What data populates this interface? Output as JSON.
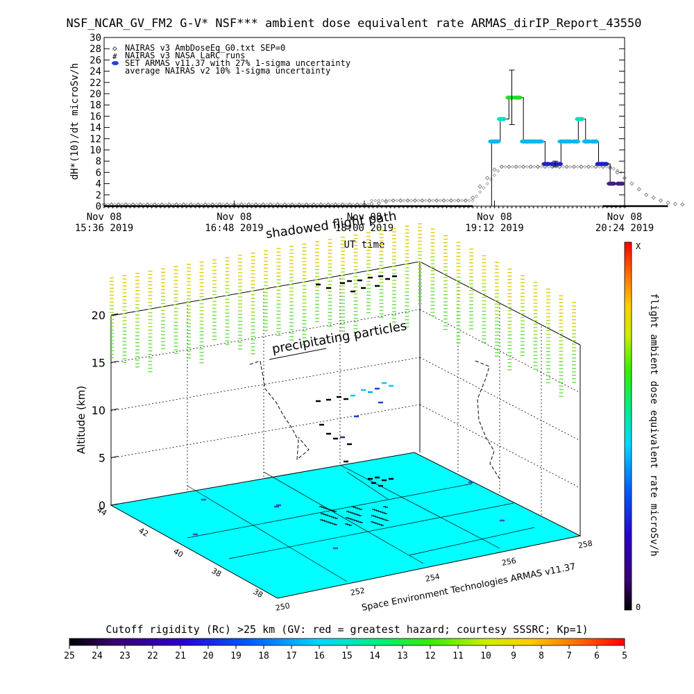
{
  "title": "NSF_NCAR_GV_FM2 G-V* NSF*** ambient dose equivalent rate ARMAS_dirIP_Report_43550",
  "chart_data": [
    {
      "type": "scatter",
      "ylabel": "dH*(10)/dt microSv/h",
      "xlabel": "UT time",
      "ylim": [
        0,
        30
      ],
      "yticks": [
        "0",
        "2",
        "4",
        "6",
        "8",
        "10",
        "12",
        "14",
        "16",
        "18",
        "20",
        "22",
        "24",
        "26",
        "28",
        "30"
      ],
      "xticks": [
        {
          "line1": "Nov 08",
          "line2": "15:36 2019"
        },
        {
          "line1": "Nov 08",
          "line2": "16:48 2019"
        },
        {
          "line1": "Nov 08",
          "line2": "18:00 2019"
        },
        {
          "line1": "Nov 08",
          "line2": "19:12 2019"
        },
        {
          "line1": "Nov 08",
          "line2": "20:24 2019"
        }
      ],
      "legend": [
        {
          "symbol": "◇",
          "label": "NAIRAS v3 AmbDoseEq_G0.txt SEP=0"
        },
        {
          "symbol": "#",
          "label": "NAIRAS v3 NASA LaRC runs"
        },
        {
          "symbol": "●",
          "label": "SET ARMAS v11.37 with 27% 1-sigma uncertainty"
        },
        {
          "symbol": "",
          "label": "average NAIRAS v2 10% 1-sigma uncertainty"
        }
      ],
      "series": [
        {
          "marker": "diamond",
          "x_minutes": [
            0,
            5,
            10,
            15,
            20,
            25,
            30,
            35,
            40,
            45,
            50,
            55,
            60,
            65,
            70,
            75,
            80,
            85,
            90,
            95,
            100,
            105,
            110,
            115,
            120,
            125,
            130,
            135,
            140,
            145,
            150,
            155,
            160,
            165,
            170,
            175,
            180,
            185,
            190,
            195,
            200,
            205,
            210,
            215,
            220,
            225,
            230,
            235,
            240,
            245,
            250,
            255,
            260,
            265,
            270,
            275,
            280,
            285,
            290,
            295,
            300
          ],
          "values": [
            0.3,
            0.3,
            0.3,
            0.3,
            0.3,
            0.3,
            0.3,
            0.3,
            0.3,
            0.3,
            0.3,
            0.3,
            0.3,
            0.3,
            0.3,
            0.3,
            0.3,
            0.3,
            0.3,
            0.3,
            0.3,
            0.3,
            0.3,
            0.3,
            0.3,
            0.3,
            0.3,
            0.3,
            0.3,
            0.3,
            0.3,
            0.3,
            0.3,
            0.3,
            0.3,
            0.3,
            0.3,
            0.4,
            0.5,
            0.8,
            1.0,
            1.0,
            1.0,
            1.0,
            1.0,
            1.0,
            1.0,
            1.0,
            1.0,
            1.0,
            1.0,
            1.5,
            3.5,
            5.0,
            6.5,
            7.0,
            7.0,
            7.0,
            7.0,
            7.0,
            7.0
          ]
        },
        {
          "marker": "cross",
          "values_note": "",
          "x_minutes": [
            0,
            10,
            20,
            30,
            40,
            50,
            60,
            70,
            80,
            90,
            100,
            110,
            120,
            130,
            140,
            150,
            160,
            170,
            180,
            190,
            200,
            210,
            220,
            230,
            240,
            250,
            260,
            270,
            280,
            290,
            300,
            310,
            320,
            330,
            340,
            350,
            360,
            370,
            380,
            390,
            400
          ],
          "values": [
            0.2,
            0.2,
            0.2,
            0.2,
            0.2,
            0.2,
            0.2,
            0.2,
            0.2,
            0.2,
            0.2,
            0.2,
            0.2,
            0.2,
            0.2,
            0.2,
            0.2,
            0.2,
            0.2,
            0.2,
            0.2,
            0.2,
            0.2,
            0.2,
            0.2,
            0.2,
            0.2,
            0.2,
            0.2,
            0.2,
            0.2,
            0.2,
            0.2,
            0.2,
            0.2,
            0.2,
            0.2,
            0.2,
            0.2,
            0.2,
            0.2
          ]
        },
        {
          "marker": "filled-dot",
          "x_minutes": [
            0,
            20,
            40,
            60,
            80,
            100,
            120,
            140,
            160,
            180,
            200,
            220,
            240,
            255,
            262,
            268,
            270,
            274,
            280,
            285,
            290,
            293,
            296,
            300,
            305,
            310,
            313,
            316,
            320,
            325,
            328,
            333,
            338,
            342,
            345,
            350,
            356,
            360
          ],
          "values": [
            0,
            0,
            0,
            0,
            0,
            0,
            0,
            0,
            0,
            0,
            0,
            0,
            0,
            0,
            0,
            11.5,
            11.5,
            15.5,
            19.3,
            19.3,
            11.5,
            11.5,
            11.5,
            11.5,
            7.5,
            7.5,
            7.5,
            11.5,
            11.5,
            11.5,
            15.5,
            11.5,
            11.5,
            7.5,
            7.5,
            4.0,
            4.0,
            0
          ]
        }
      ],
      "error_bars": [
        {
          "x_minutes": 282,
          "low": 14.5,
          "high": 24.2
        },
        {
          "x_minutes": 312,
          "low": 7.0,
          "high": 8.0
        }
      ],
      "diamond_tail": {
        "x_minutes": [
          300,
          305,
          310,
          315,
          320,
          325,
          330,
          335,
          340,
          345,
          350,
          355,
          360,
          365,
          370,
          375,
          380,
          385,
          390,
          395,
          400
        ],
        "values": [
          7.0,
          7.0,
          7.0,
          7.0,
          7.0,
          7.0,
          7.0,
          7.0,
          7.0,
          7.0,
          6.8,
          6.0,
          5.0,
          4.0,
          3.0,
          2.0,
          1.5,
          1.0,
          0.6,
          0.4,
          0.3
        ]
      }
    },
    {
      "type": "scatter",
      "zlabel": "Altitude (km)",
      "zticks": [
        "0",
        "5",
        "10",
        "15",
        "20"
      ],
      "x_ticks": [
        "250",
        "252",
        "254",
        "256",
        "258"
      ],
      "y_ticks": [
        "38",
        "38",
        "40",
        "42",
        "44"
      ],
      "annotations": [
        "shadowed flight path",
        "precipitating particles",
        "Space Environment Technologies ARMAS v11.37"
      ],
      "colorbar_label": "flight ambient dose equivalent rate microSv/h",
      "colorbar_top": "X",
      "colorbar_bottom": "0"
    },
    {
      "type": "heatmap",
      "title": "Cutoff rigidity (Rc) >25 km (GV: red = greatest hazard; courtesy SSSRC; Kp=1)",
      "ticks": [
        "25",
        "24",
        "23",
        "22",
        "21",
        "20",
        "19",
        "18",
        "17",
        "16",
        "15",
        "14",
        "13",
        "12",
        "11",
        "10",
        "9",
        "8",
        "7",
        "6",
        "5"
      ]
    }
  ],
  "colors": {
    "floor": "#00ffff",
    "diamond_series": "#555555",
    "armas_dark": "#1a1a80",
    "armas_cyan": "#00d4e8",
    "armas_green": "#22dd22"
  }
}
